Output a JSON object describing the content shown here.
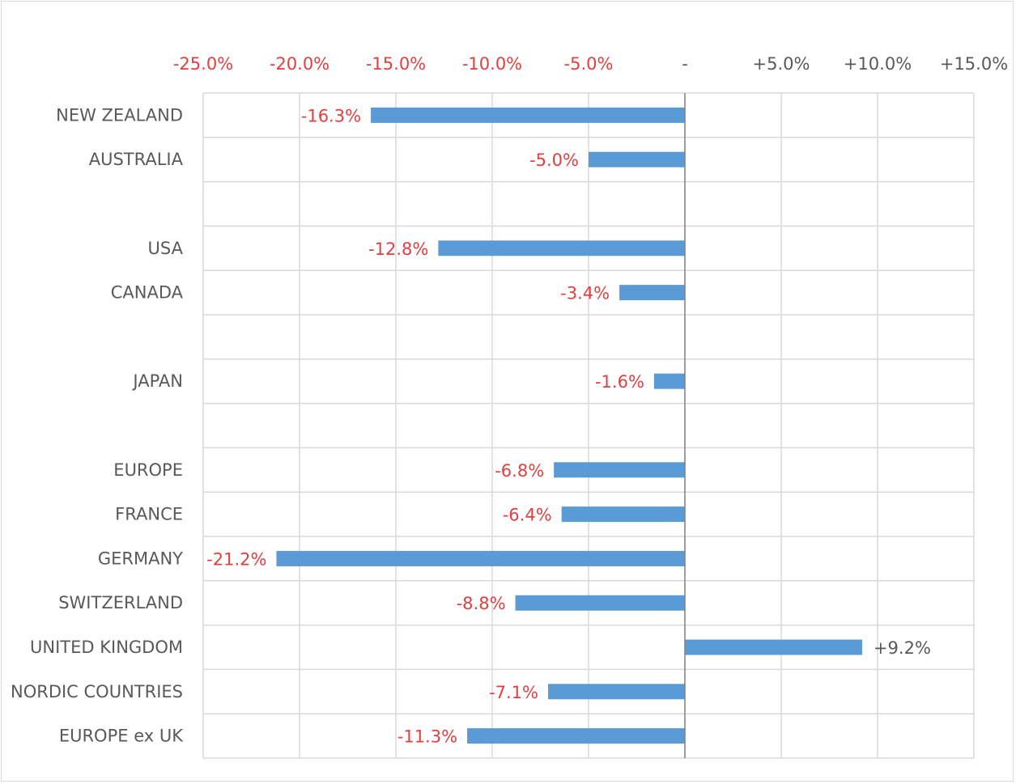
{
  "chart_data": {
    "type": "bar",
    "orientation": "horizontal",
    "title": "",
    "xlabel": "",
    "ylabel": "",
    "xlim": [
      -25,
      15
    ],
    "x_ticks": [
      -25,
      -20,
      -15,
      -10,
      -5,
      0,
      5,
      10,
      15
    ],
    "x_tick_labels": [
      "-25.0%",
      "-20.0%",
      "-15.0%",
      "-10.0%",
      "-5.0%",
      "-",
      "+5.0%",
      "+10.0%",
      "+15.0%"
    ],
    "axis_position": "top",
    "grid": true,
    "legend": "none",
    "categories": [
      "NEW ZEALAND",
      "AUSTRALIA",
      "",
      "USA",
      "CANADA",
      "",
      "JAPAN",
      "",
      "EUROPE",
      "FRANCE",
      "GERMANY",
      "SWITZERLAND",
      "UNITED KINGDOM",
      "NORDIC COUNTRIES",
      "EUROPE ex UK"
    ],
    "values": [
      -16.3,
      -5.0,
      null,
      -12.8,
      -3.4,
      null,
      -1.6,
      null,
      -6.8,
      -6.4,
      -21.2,
      -8.8,
      9.2,
      -7.1,
      -11.3
    ],
    "value_labels": [
      "-16.3%",
      "-5.0%",
      "",
      "-12.8%",
      "-3.4%",
      "",
      "-1.6%",
      "",
      "-6.8%",
      "-6.4%",
      "-21.2%",
      "-8.8%",
      "+9.2%",
      "-7.1%",
      "-11.3%"
    ],
    "colors": {
      "bar": "#5b9bd5",
      "negative_text": "#e0403f",
      "positive_text": "#595959",
      "category_text": "#595959",
      "grid": "#d9d9d9",
      "zero_line": "#7f7f7f"
    }
  }
}
